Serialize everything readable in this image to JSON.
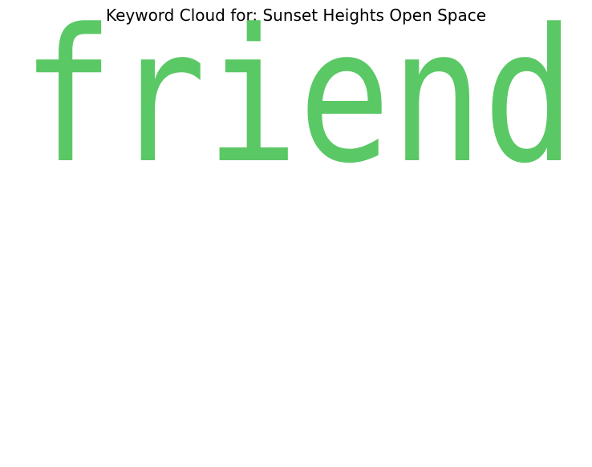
{
  "figure": {
    "title": "Keyword Cloud for: Sunset Heights Open Space"
  },
  "cloud": {
    "words": [
      {
        "text": "friend",
        "color": "#5BC866"
      }
    ]
  }
}
